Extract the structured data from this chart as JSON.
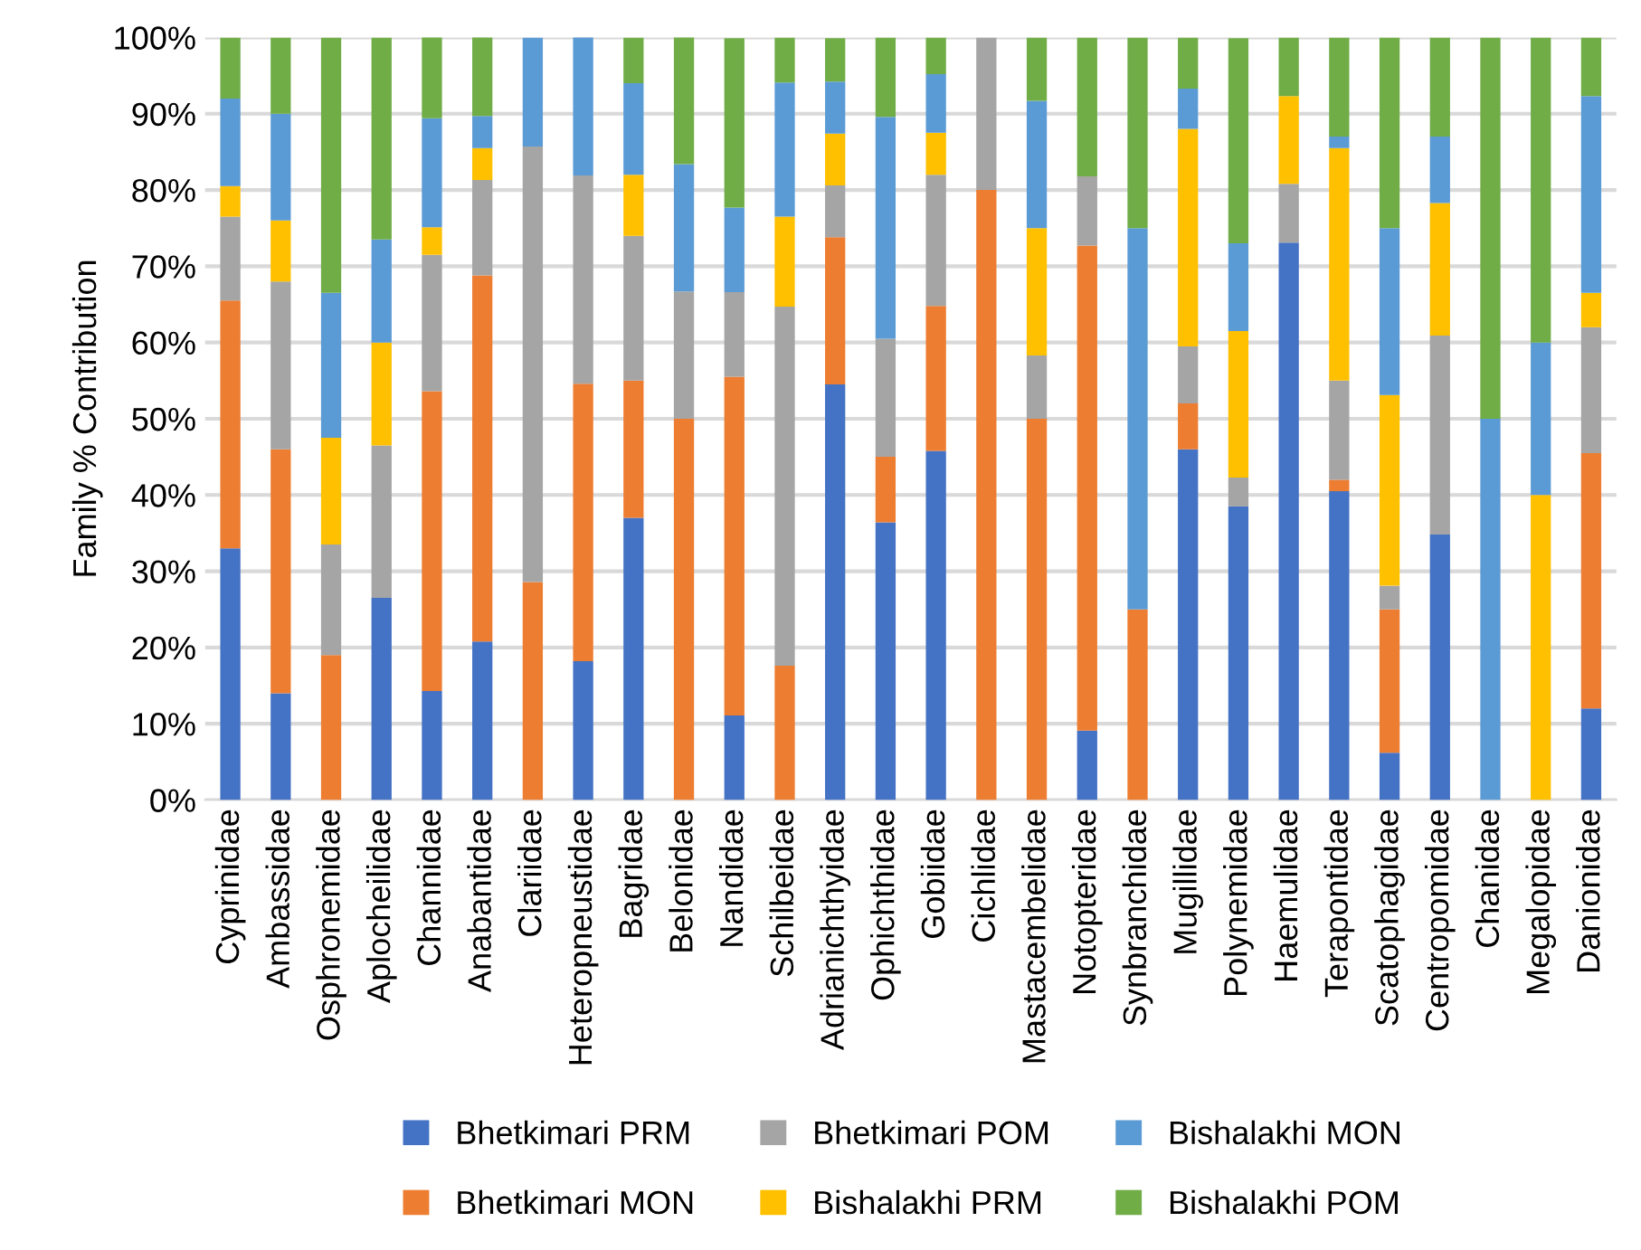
{
  "chart_data": {
    "type": "bar",
    "stacked": true,
    "ylabel": "Family % Contribution",
    "categories": [
      "Cyprinidae",
      "Ambassidae",
      "Osphronemidae",
      "Aplocheilidae",
      "Channidae",
      "Anabantidae",
      "Clariidae",
      "Heteropneustidae",
      "Bagridae",
      "Belonidae",
      "Nandidae",
      "Schilbeidae",
      "Adrianichthyidae",
      "Ophichthidae",
      "Gobiidae",
      "Cichlidae",
      "Mastacembelidae",
      "Notopteridae",
      "Synbranchidae",
      "Mugillidae",
      "Polynemidae",
      "Haemulidae",
      "Terapontidae",
      "Scatophagidae",
      "Centropomidae",
      "Chanidae",
      "Megalopidae",
      "Danionidae"
    ],
    "series": [
      {
        "name": "Bhetkimari PRM",
        "color": "#4472c4",
        "values": [
          33,
          14,
          0,
          26.5,
          14.3,
          20.8,
          0,
          18.2,
          37,
          0,
          11.1,
          0,
          54.5,
          36.4,
          45.8,
          0,
          0,
          9.1,
          0,
          46,
          38.5,
          73.1,
          40.5,
          6.2,
          34.8,
          0,
          0,
          12
        ]
      },
      {
        "name": "Bhetkimari MON",
        "color": "#ed7d31",
        "values": [
          32.5,
          32,
          19,
          0,
          39.3,
          48,
          28.6,
          36.4,
          18,
          50,
          44.4,
          17.6,
          19.3,
          8.6,
          19,
          80,
          50,
          63.6,
          25,
          6,
          0,
          0,
          1.5,
          18.8,
          0,
          0,
          0,
          33.5
        ]
      },
      {
        "name": "Bhetkimari POM",
        "color": "#a5a5a5",
        "values": [
          11,
          22,
          14.5,
          20,
          17.9,
          12.5,
          57.1,
          27.3,
          19,
          16.7,
          11.1,
          47.1,
          6.8,
          15.5,
          17.2,
          20,
          8.3,
          9.1,
          0,
          7.5,
          3.8,
          7.7,
          13,
          3.1,
          26.1,
          0,
          0,
          16.5
        ]
      },
      {
        "name": "Bishalakhi PRM",
        "color": "#ffc000",
        "values": [
          4,
          8,
          14,
          13.5,
          3.6,
          4.2,
          0,
          0,
          8,
          0,
          0,
          11.8,
          6.8,
          0,
          5.5,
          0,
          16.7,
          0,
          0,
          28.5,
          19.2,
          11.5,
          30.5,
          25,
          17.4,
          0,
          40,
          4.5
        ]
      },
      {
        "name": "Bishalakhi MON",
        "color": "#5b9bd5",
        "values": [
          11.5,
          14,
          19,
          13.5,
          14.3,
          4.2,
          14.3,
          18.2,
          12,
          16.7,
          11.1,
          17.6,
          6.8,
          29.1,
          7.7,
          0,
          16.7,
          0,
          50,
          5.3,
          11.5,
          0,
          1.5,
          21.9,
          8.7,
          50,
          20,
          25.8
        ]
      },
      {
        "name": "Bishalakhi POM",
        "color": "#70ad47",
        "values": [
          8,
          10,
          33.5,
          26.5,
          10.7,
          10.4,
          0,
          0,
          6,
          16.7,
          22.2,
          5.9,
          5.7,
          10.4,
          4.8,
          0,
          8.3,
          18.2,
          25,
          6.7,
          26.9,
          7.7,
          13,
          25,
          13,
          50,
          40,
          7.7
        ]
      }
    ],
    "ylim": [
      0,
      100
    ],
    "yticks": [
      {
        "value": 0,
        "label": "0%"
      },
      {
        "value": 10,
        "label": "10%"
      },
      {
        "value": 20,
        "label": "20%"
      },
      {
        "value": 30,
        "label": "30%"
      },
      {
        "value": 40,
        "label": "40%"
      },
      {
        "value": 50,
        "label": "50%"
      },
      {
        "value": 60,
        "label": "60%"
      },
      {
        "value": 70,
        "label": "70%"
      },
      {
        "value": 80,
        "label": "80%"
      },
      {
        "value": 90,
        "label": "90%"
      },
      {
        "value": 100,
        "label": "100%"
      }
    ],
    "grid": "y",
    "legend": "bottom"
  }
}
